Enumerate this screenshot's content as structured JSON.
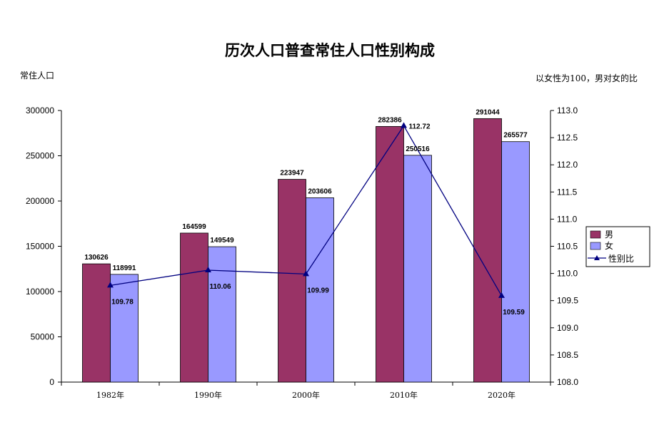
{
  "chart_data": {
    "type": "bar",
    "title": "历次人口普查常住人口性别构成",
    "ylabel": "常住人口",
    "y2label": "以女性为100，男对女的比",
    "categories": [
      "1982年",
      "1990年",
      "2000年",
      "2010年",
      "2020年"
    ],
    "series": [
      {
        "name": "男",
        "type": "bar",
        "axis": "left",
        "color": "#993366",
        "values": [
          130626,
          164599,
          223947,
          282386,
          291044
        ]
      },
      {
        "name": "女",
        "type": "bar",
        "axis": "left",
        "color": "#9999ff",
        "values": [
          118991,
          149549,
          203606,
          250516,
          265577
        ]
      },
      {
        "name": "性别比",
        "type": "line",
        "axis": "right",
        "color": "#000080",
        "marker": "triangle",
        "values": [
          109.78,
          110.06,
          109.99,
          112.72,
          109.59
        ]
      }
    ],
    "ylim": [
      0,
      300000
    ],
    "yticks": [
      "0",
      "50000",
      "100000",
      "150000",
      "200000",
      "250000",
      "300000"
    ],
    "y2lim": [
      108.0,
      113.0
    ],
    "y2ticks": [
      "108.0",
      "108.5",
      "109.0",
      "109.5",
      "110.0",
      "110.5",
      "111.0",
      "111.5",
      "112.0",
      "112.5",
      "113.0"
    ],
    "grid": false,
    "legend": "right"
  }
}
